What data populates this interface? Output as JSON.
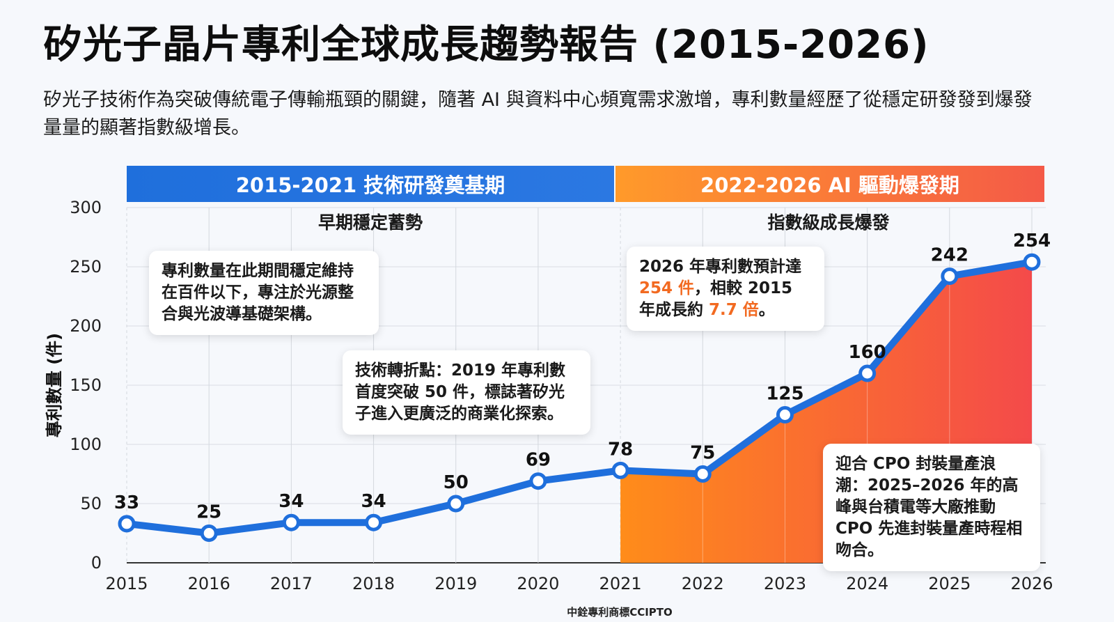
{
  "header": {
    "title": "矽光子晶片專利全球成長趨勢報告 (2015-2026)",
    "subtitle": "矽光子技術作為突破傳統電子傳輸瓶頸的關鍵，隨著 AI 與資料中心頻寬需求激增，專利數量經歷了從穩定研發發到爆發量量的顯著指數級增長。"
  },
  "phases": [
    {
      "band": "2015-2021 技術研發奠基期",
      "label": "早期穩定蓄勢",
      "color": "#2272de"
    },
    {
      "band": "2022-2026 AI 驅動爆發期",
      "label": "指數級成長爆發",
      "color": "#f97a3a"
    }
  ],
  "callouts": {
    "early": "專利數量在此期間穩定維持在百件以下，專注於光源整合與光波導基礎架構。",
    "turning": "技術轉折點：2019 年專利數首度突破 50 件，標誌著矽光子進入更廣泛的商業化探索。",
    "forecast_pre": "2026 年專利數預計達",
    "forecast_hl1": "254 件",
    "forecast_mid": "，相較 2015 年成長約",
    "forecast_hl2": "7.7 倍",
    "forecast_post": "。",
    "cpo": "迎合 CPO 封裝量產浪潮：2025–2026 年的高峰與台積電等大廠推動 CPO 先進封裝量產時程相吻合。"
  },
  "footer": "中銓專利商標CCIPTO",
  "chart_data": {
    "type": "line",
    "title": "矽光子晶片專利全球成長趨勢報告 (2015-2026)",
    "xlabel": "",
    "ylabel": "專利數量 (件)",
    "categories": [
      "2015",
      "2016",
      "2017",
      "2018",
      "2019",
      "2020",
      "2021",
      "2022",
      "2023",
      "2024",
      "2025",
      "2026"
    ],
    "series": [
      {
        "values": [
          33,
          25,
          34,
          34,
          50,
          69,
          78,
          75,
          125,
          160,
          242,
          254
        ],
        "color": "#1f6fdc"
      }
    ],
    "ylim": [
      0,
      300
    ],
    "yticks": [
      0,
      50,
      100,
      150,
      200,
      250,
      300
    ],
    "grid": true,
    "area_fill_from": "2021",
    "area_colors": [
      "#ff8c1a",
      "#f44a4a"
    ]
  }
}
